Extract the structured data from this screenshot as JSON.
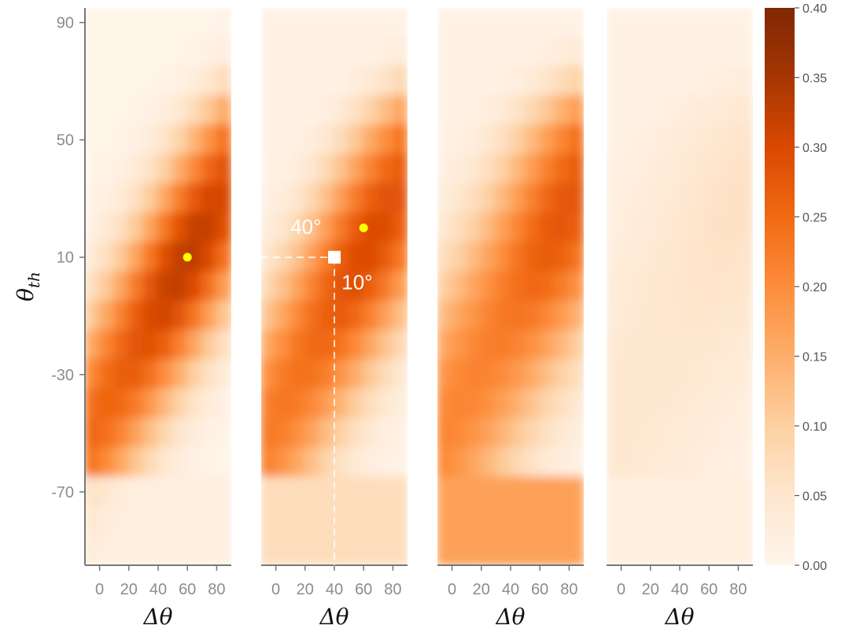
{
  "chart_data": {
    "type": "heatmap",
    "panels": 4,
    "xlabel": "Δθ",
    "ylabel": "θ",
    "ylabel_sub": "th",
    "x_ticks": [
      0,
      20,
      40,
      60,
      80
    ],
    "y_ticks": [
      90,
      50,
      10,
      -30,
      -70
    ],
    "xlim": [
      -10,
      90
    ],
    "ylim": [
      -95,
      95
    ],
    "colorbar": {
      "label": "",
      "range": [
        0.0,
        0.4
      ],
      "ticks": [
        "0.00",
        "0.05",
        "0.10",
        "0.15",
        "0.20",
        "0.25",
        "0.30",
        "0.35",
        "0.40"
      ],
      "colors": [
        "#fff5eb",
        "#fee6ce",
        "#fdd0a2",
        "#fdae6b",
        "#fd8d3c",
        "#f16913",
        "#d94801",
        "#a63603",
        "#7f2704"
      ]
    },
    "panel_params": [
      {
        "peak": 0.33,
        "center": [
          60,
          10
        ],
        "ridge_width": 30,
        "min": 0.005,
        "lower_floor": 0.02
      },
      {
        "peak": 0.3,
        "center": [
          60,
          20
        ],
        "ridge_width": 34,
        "min": 0.01,
        "lower_floor": 0.07
      },
      {
        "peak": 0.28,
        "center": [
          80,
          25
        ],
        "ridge_width": 40,
        "min": 0.01,
        "lower_floor": 0.17
      },
      {
        "peak": 0.06,
        "center": [
          80,
          25
        ],
        "ridge_width": 60,
        "min": 0.01,
        "lower_floor": 0.02
      }
    ],
    "markers": [
      {
        "panel": 0,
        "x": 60,
        "y": 10,
        "shape": "circle",
        "color": "#ffff00"
      },
      {
        "panel": 1,
        "x": 60,
        "y": 20,
        "shape": "circle",
        "color": "#ffff00"
      },
      {
        "panel": 1,
        "x": 40,
        "y": 10,
        "shape": "square",
        "color": "#ffffff"
      }
    ],
    "annotations": [
      {
        "panel": 1,
        "text": "40°",
        "x": 10,
        "y": 18
      },
      {
        "panel": 1,
        "text": "10°",
        "x": 45,
        "y": -1
      }
    ]
  }
}
